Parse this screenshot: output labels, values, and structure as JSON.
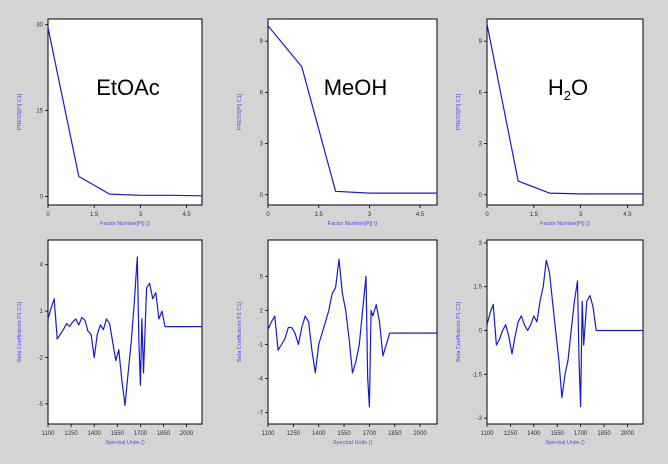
{
  "colors": {
    "background": "#d4d4d4",
    "plot_bg": "#ffffff",
    "line": "#1a1acc",
    "axis_label": "#4a4aff",
    "tick": "#333333"
  },
  "chart_data": [
    {
      "type": "line",
      "label": "EtOAc",
      "ylabel": "PRESS[Pi] C1]",
      "xlabel": "Factor Number[Pj] ()",
      "xlim": [
        0,
        5
      ],
      "ylim": [
        -1.5,
        31
      ],
      "xticks": [
        0,
        1.5,
        3,
        4.5
      ],
      "yticks": [
        0,
        15,
        30
      ],
      "x": [
        0,
        1,
        2,
        3,
        4,
        5
      ],
      "y": [
        29.5,
        3.5,
        0.4,
        0.2,
        0.2,
        0.1
      ]
    },
    {
      "type": "line",
      "label": "MeOH",
      "ylabel": "PRESS[Pi] C1]",
      "xlabel": "Factor Number[Pj] ()",
      "xlim": [
        0,
        5
      ],
      "ylim": [
        -0.6,
        10.3
      ],
      "xticks": [
        0,
        1.5,
        3,
        4.5
      ],
      "yticks": [
        0,
        3,
        6,
        9
      ],
      "x": [
        0,
        1,
        2,
        3,
        4,
        5
      ],
      "y": [
        9.9,
        7.5,
        0.2,
        0.1,
        0.1,
        0.1
      ]
    },
    {
      "type": "line",
      "label": "H2O",
      "ylabel": "PRESS[Pi] C1]",
      "xlabel": "Factor Number[Pj] ()",
      "xlim": [
        0,
        5
      ],
      "ylim": [
        -0.6,
        10.3
      ],
      "xticks": [
        0,
        1.5,
        3,
        4.5
      ],
      "yticks": [
        0,
        3,
        6,
        9
      ],
      "x": [
        0,
        1,
        2,
        3,
        4,
        5
      ],
      "y": [
        10.0,
        0.8,
        0.1,
        0.05,
        0.05,
        0.05
      ]
    },
    {
      "type": "line",
      "ylabel": "Beta Coefficients P1 C1]",
      "xlabel": "Spectral Units ()",
      "xlim": [
        1100,
        2100
      ],
      "ylim": [
        -6.3,
        5.6
      ],
      "xticks": [
        1100,
        1250,
        1400,
        1550,
        1700,
        1850,
        2000
      ],
      "yticks": [
        -5,
        -2,
        1,
        4
      ],
      "x": [
        1100,
        1120,
        1140,
        1160,
        1180,
        1200,
        1220,
        1240,
        1260,
        1280,
        1300,
        1320,
        1340,
        1360,
        1380,
        1400,
        1420,
        1440,
        1460,
        1480,
        1500,
        1520,
        1540,
        1560,
        1580,
        1600,
        1620,
        1640,
        1660,
        1680,
        1690,
        1700,
        1710,
        1720,
        1740,
        1760,
        1780,
        1800,
        1820,
        1840,
        1860,
        2100
      ],
      "y": [
        0.5,
        1.2,
        1.8,
        -0.8,
        -0.5,
        -0.2,
        0.2,
        0.0,
        0.3,
        0.5,
        0.1,
        0.6,
        0.4,
        -0.3,
        -0.5,
        -2.0,
        -0.5,
        0.1,
        -0.2,
        0.5,
        0.2,
        -1.0,
        -2.2,
        -1.5,
        -3.5,
        -5.1,
        -3.0,
        -1.0,
        1.5,
        4.5,
        -1.0,
        -3.8,
        0.5,
        -3.0,
        2.5,
        2.8,
        1.8,
        2.2,
        0.5,
        1.0,
        0.0,
        0.0
      ]
    },
    {
      "type": "line",
      "ylabel": "Beta Coefficients P1 C1]",
      "xlabel": "Spectral Units ()",
      "xlim": [
        1100,
        2100
      ],
      "ylim": [
        -8,
        8.2
      ],
      "xticks": [
        1100,
        1250,
        1400,
        1550,
        1700,
        1850,
        2000
      ],
      "yticks": [
        -7,
        -4,
        -1,
        2,
        5
      ],
      "x": [
        1100,
        1120,
        1140,
        1160,
        1180,
        1200,
        1220,
        1240,
        1260,
        1280,
        1300,
        1320,
        1340,
        1360,
        1380,
        1400,
        1420,
        1440,
        1460,
        1480,
        1500,
        1520,
        1540,
        1560,
        1580,
        1600,
        1620,
        1640,
        1660,
        1680,
        1690,
        1700,
        1710,
        1720,
        1740,
        1760,
        1780,
        1800,
        1820,
        2100
      ],
      "y": [
        0.3,
        1.0,
        1.5,
        -1.5,
        -1.0,
        -0.5,
        0.5,
        0.5,
        0.0,
        -1.0,
        0.5,
        1.5,
        1.0,
        -1.5,
        -3.5,
        -1.0,
        0.0,
        1.0,
        2.0,
        3.5,
        4.0,
        6.5,
        3.5,
        2.0,
        -0.5,
        -3.5,
        -2.5,
        -1.0,
        2.0,
        5.0,
        -4.0,
        -6.5,
        2.0,
        1.5,
        2.5,
        1.0,
        -2.0,
        -1.0,
        0.0,
        0.0
      ]
    },
    {
      "type": "line",
      "ylabel": "Beta Coefficients P1 C1]",
      "xlabel": "Spectral Units ()",
      "xlim": [
        1100,
        2100
      ],
      "ylim": [
        -3.2,
        3.1
      ],
      "xticks": [
        1100,
        1250,
        1400,
        1550,
        1700,
        1850,
        2000
      ],
      "yticks": [
        -3,
        -1.5,
        0,
        1.5,
        3
      ],
      "x": [
        1100,
        1120,
        1140,
        1160,
        1180,
        1200,
        1220,
        1240,
        1260,
        1280,
        1300,
        1320,
        1340,
        1360,
        1380,
        1400,
        1420,
        1440,
        1460,
        1480,
        1500,
        1520,
        1540,
        1560,
        1580,
        1600,
        1620,
        1640,
        1660,
        1680,
        1690,
        1700,
        1710,
        1720,
        1740,
        1760,
        1780,
        1800,
        1820,
        2100
      ],
      "y": [
        0.2,
        0.6,
        0.9,
        -0.5,
        -0.3,
        0.0,
        0.2,
        -0.2,
        -0.8,
        -0.2,
        0.3,
        0.5,
        0.2,
        0.0,
        0.2,
        0.5,
        0.3,
        1.0,
        1.5,
        2.4,
        2.0,
        1.0,
        0.0,
        -1.0,
        -2.3,
        -1.5,
        -1.0,
        0.0,
        1.0,
        1.7,
        -1.0,
        -2.6,
        1.0,
        -0.5,
        1.0,
        1.2,
        0.8,
        0.0,
        0.0,
        0.0
      ]
    }
  ]
}
